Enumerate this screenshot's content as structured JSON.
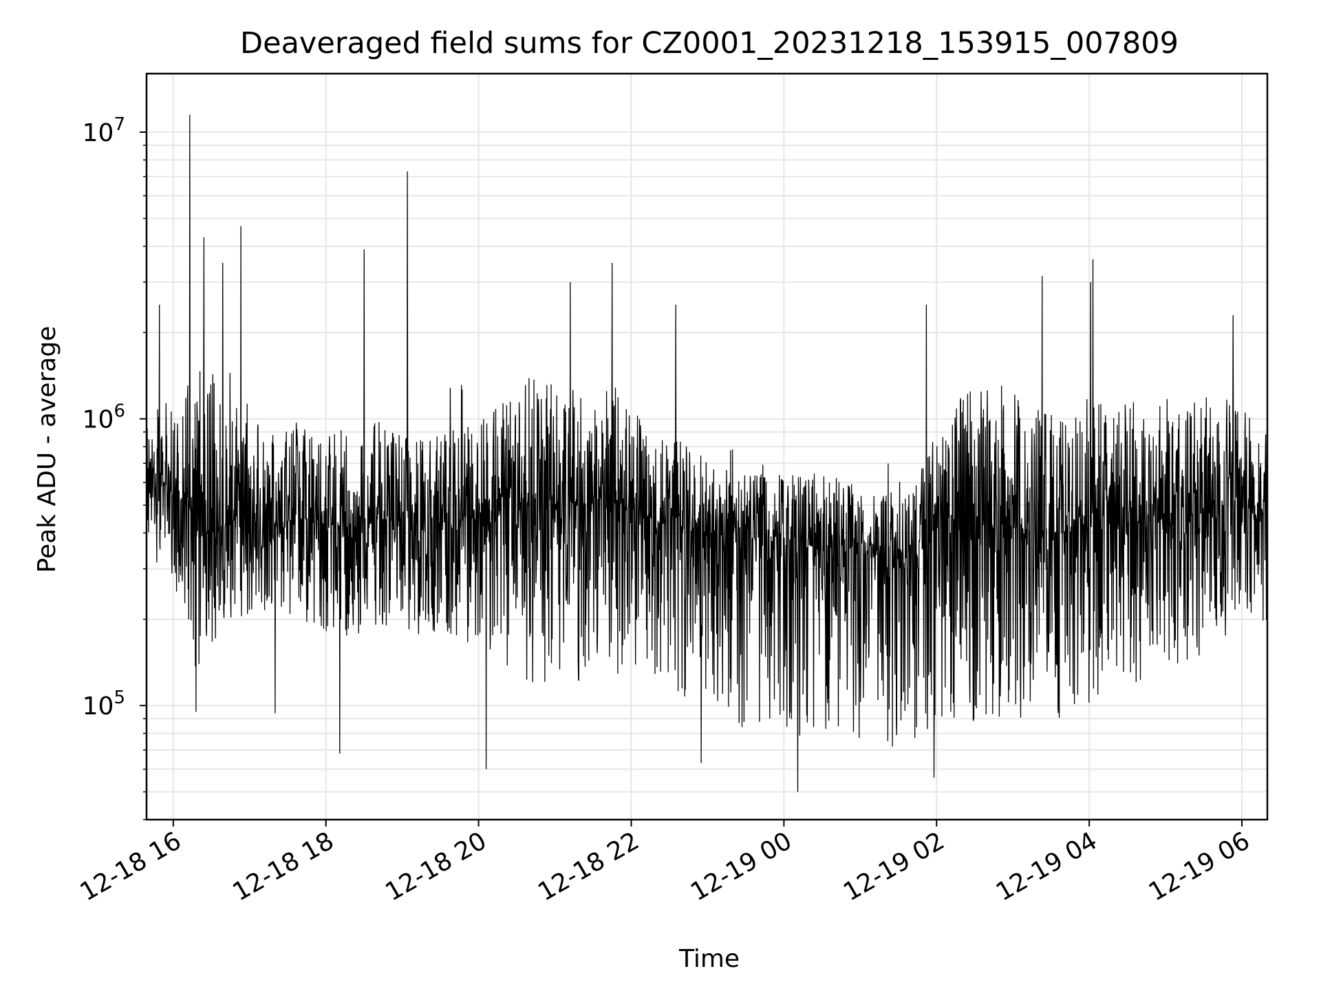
{
  "chart_data": {
    "type": "line",
    "title": "Deaveraged field sums for CZ0001_20231218_153915_007809",
    "xlabel": "Time",
    "ylabel": "Peak ADU - average",
    "yscale": "log",
    "ylim": [
      40000,
      16000000
    ],
    "xlim": [
      "2023-12-18 15:39",
      "2023-12-19 06:20"
    ],
    "grid": true,
    "legend": "none",
    "line_color": "#000000",
    "x_ticks": [
      {
        "time": "2023-12-18 16:00",
        "label": "12-18 16"
      },
      {
        "time": "2023-12-18 18:00",
        "label": "12-18 18"
      },
      {
        "time": "2023-12-18 20:00",
        "label": "12-18 20"
      },
      {
        "time": "2023-12-18 22:00",
        "label": "12-18 22"
      },
      {
        "time": "2023-12-19 00:00",
        "label": "12-19 00"
      },
      {
        "time": "2023-12-19 02:00",
        "label": "12-19 02"
      },
      {
        "time": "2023-12-19 04:00",
        "label": "12-19 04"
      },
      {
        "time": "2023-12-19 06:00",
        "label": "12-19 06"
      }
    ],
    "y_ticks": [
      {
        "value": 100000,
        "base": "10",
        "exp": "5"
      },
      {
        "value": 1000000,
        "base": "10",
        "exp": "6"
      },
      {
        "value": 10000000,
        "base": "10",
        "exp": "7"
      }
    ],
    "series": [
      {
        "x": [
          "2023-12-18 15:40",
          "2023-12-18 15:50",
          "2023-12-18 16:00",
          "2023-12-18 16:10",
          "2023-12-18 16:20",
          "2023-12-18 16:30",
          "2023-12-18 16:40",
          "2023-12-18 16:50",
          "2023-12-18 17:00",
          "2023-12-18 17:20",
          "2023-12-18 17:40",
          "2023-12-18 18:00",
          "2023-12-18 18:20",
          "2023-12-18 18:40",
          "2023-12-18 19:00",
          "2023-12-18 19:20",
          "2023-12-18 19:40",
          "2023-12-18 20:00",
          "2023-12-18 20:20",
          "2023-12-18 20:40",
          "2023-12-18 21:00",
          "2023-12-18 21:20",
          "2023-12-18 21:40",
          "2023-12-18 22:00",
          "2023-12-18 22:20",
          "2023-12-18 22:40",
          "2023-12-18 23:00",
          "2023-12-18 23:20",
          "2023-12-18 23:40",
          "2023-12-19 00:00",
          "2023-12-19 00:20",
          "2023-12-19 00:40",
          "2023-12-19 01:00",
          "2023-12-19 01:20",
          "2023-12-19 01:40",
          "2023-12-19 02:00",
          "2023-12-19 02:20",
          "2023-12-19 02:40",
          "2023-12-19 03:00",
          "2023-12-19 03:20",
          "2023-12-19 03:40",
          "2023-12-19 04:00",
          "2023-12-19 04:20",
          "2023-12-19 04:40",
          "2023-12-19 05:00",
          "2023-12-19 05:20",
          "2023-12-19 05:40",
          "2023-12-19 06:00",
          "2023-12-19 06:20"
        ],
        "y_center": [
          650000,
          600000,
          550000,
          500000,
          450000,
          400000,
          420000,
          450000,
          440000,
          430000,
          450000,
          430000,
          420000,
          450000,
          440000,
          430000,
          440000,
          460000,
          480000,
          500000,
          480000,
          500000,
          540000,
          480000,
          440000,
          420000,
          400000,
          390000,
          380000,
          370000,
          360000,
          360000,
          350000,
          300000,
          330000,
          380000,
          420000,
          430000,
          420000,
          410000,
          400000,
          420000,
          430000,
          440000,
          450000,
          460000,
          470000,
          480000,
          450000
        ],
        "y_upper": [
          1000000,
          1200000,
          1100000,
          1500000,
          1600000,
          1500000,
          1200000,
          1300000,
          1100000,
          900000,
          1000000,
          900000,
          950000,
          1000000,
          900000,
          850000,
          950000,
          1050000,
          1200000,
          1400000,
          1350000,
          1300000,
          1500000,
          1100000,
          900000,
          850000,
          750000,
          700000,
          650000,
          650000,
          650000,
          650000,
          600000,
          580000,
          650000,
          900000,
          1300000,
          1400000,
          1300000,
          1100000,
          1000000,
          1100000,
          1200000,
          1150000,
          1200000,
          1200000,
          1250000,
          1100000,
          900000
        ],
        "y_lower": [
          350000,
          300000,
          250000,
          150000,
          120000,
          140000,
          160000,
          190000,
          200000,
          210000,
          200000,
          170000,
          170000,
          190000,
          180000,
          170000,
          170000,
          160000,
          140000,
          120000,
          120000,
          120000,
          130000,
          120000,
          110000,
          100000,
          90000,
          85000,
          80000,
          80000,
          75000,
          75000,
          75000,
          70000,
          70000,
          80000,
          85000,
          90000,
          90000,
          90000,
          90000,
          100000,
          110000,
          120000,
          130000,
          140000,
          150000,
          170000,
          190000
        ],
        "spikes": [
          {
            "time": "2023-12-18 15:49",
            "value": 2500000
          },
          {
            "time": "2023-12-18 16:13",
            "value": 11500000
          },
          {
            "time": "2023-12-18 16:24",
            "value": 4300000
          },
          {
            "time": "2023-12-18 16:39",
            "value": 3500000
          },
          {
            "time": "2023-12-18 16:53",
            "value": 4700000
          },
          {
            "time": "2023-12-18 18:30",
            "value": 3900000
          },
          {
            "time": "2023-12-18 19:04",
            "value": 7300000
          },
          {
            "time": "2023-12-18 21:12",
            "value": 3000000
          },
          {
            "time": "2023-12-18 21:45",
            "value": 3500000
          },
          {
            "time": "2023-12-18 22:35",
            "value": 2500000
          },
          {
            "time": "2023-12-19 01:52",
            "value": 2500000
          },
          {
            "time": "2023-12-19 03:23",
            "value": 3150000
          },
          {
            "time": "2023-12-19 04:01",
            "value": 3000000
          },
          {
            "time": "2023-12-19 04:03",
            "value": 3600000
          },
          {
            "time": "2023-12-19 05:53",
            "value": 2300000
          }
        ],
        "dips": [
          {
            "time": "2023-12-18 16:18",
            "value": 95000
          },
          {
            "time": "2023-12-18 17:20",
            "value": 94000
          },
          {
            "time": "2023-12-18 18:11",
            "value": 68000
          },
          {
            "time": "2023-12-18 20:06",
            "value": 60000
          },
          {
            "time": "2023-12-18 22:55",
            "value": 63000
          },
          {
            "time": "2023-12-19 00:11",
            "value": 50000
          },
          {
            "time": "2023-12-19 01:58",
            "value": 56000
          }
        ]
      }
    ]
  }
}
